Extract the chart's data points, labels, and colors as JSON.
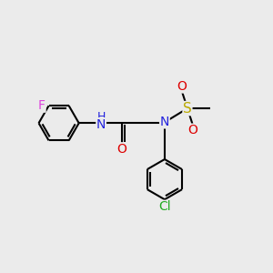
{
  "bg_color": "#ebebeb",
  "bond_color": "#000000",
  "bond_width": 1.5,
  "atom_colors": {
    "F": "#dd44dd",
    "N": "#2222dd",
    "H": "#2222dd",
    "O": "#dd0000",
    "S": "#bbaa00",
    "Cl": "#22aa22",
    "C": "#000000"
  },
  "font_size": 9,
  "fig_size": [
    3.0,
    3.0
  ],
  "dpi": 100
}
